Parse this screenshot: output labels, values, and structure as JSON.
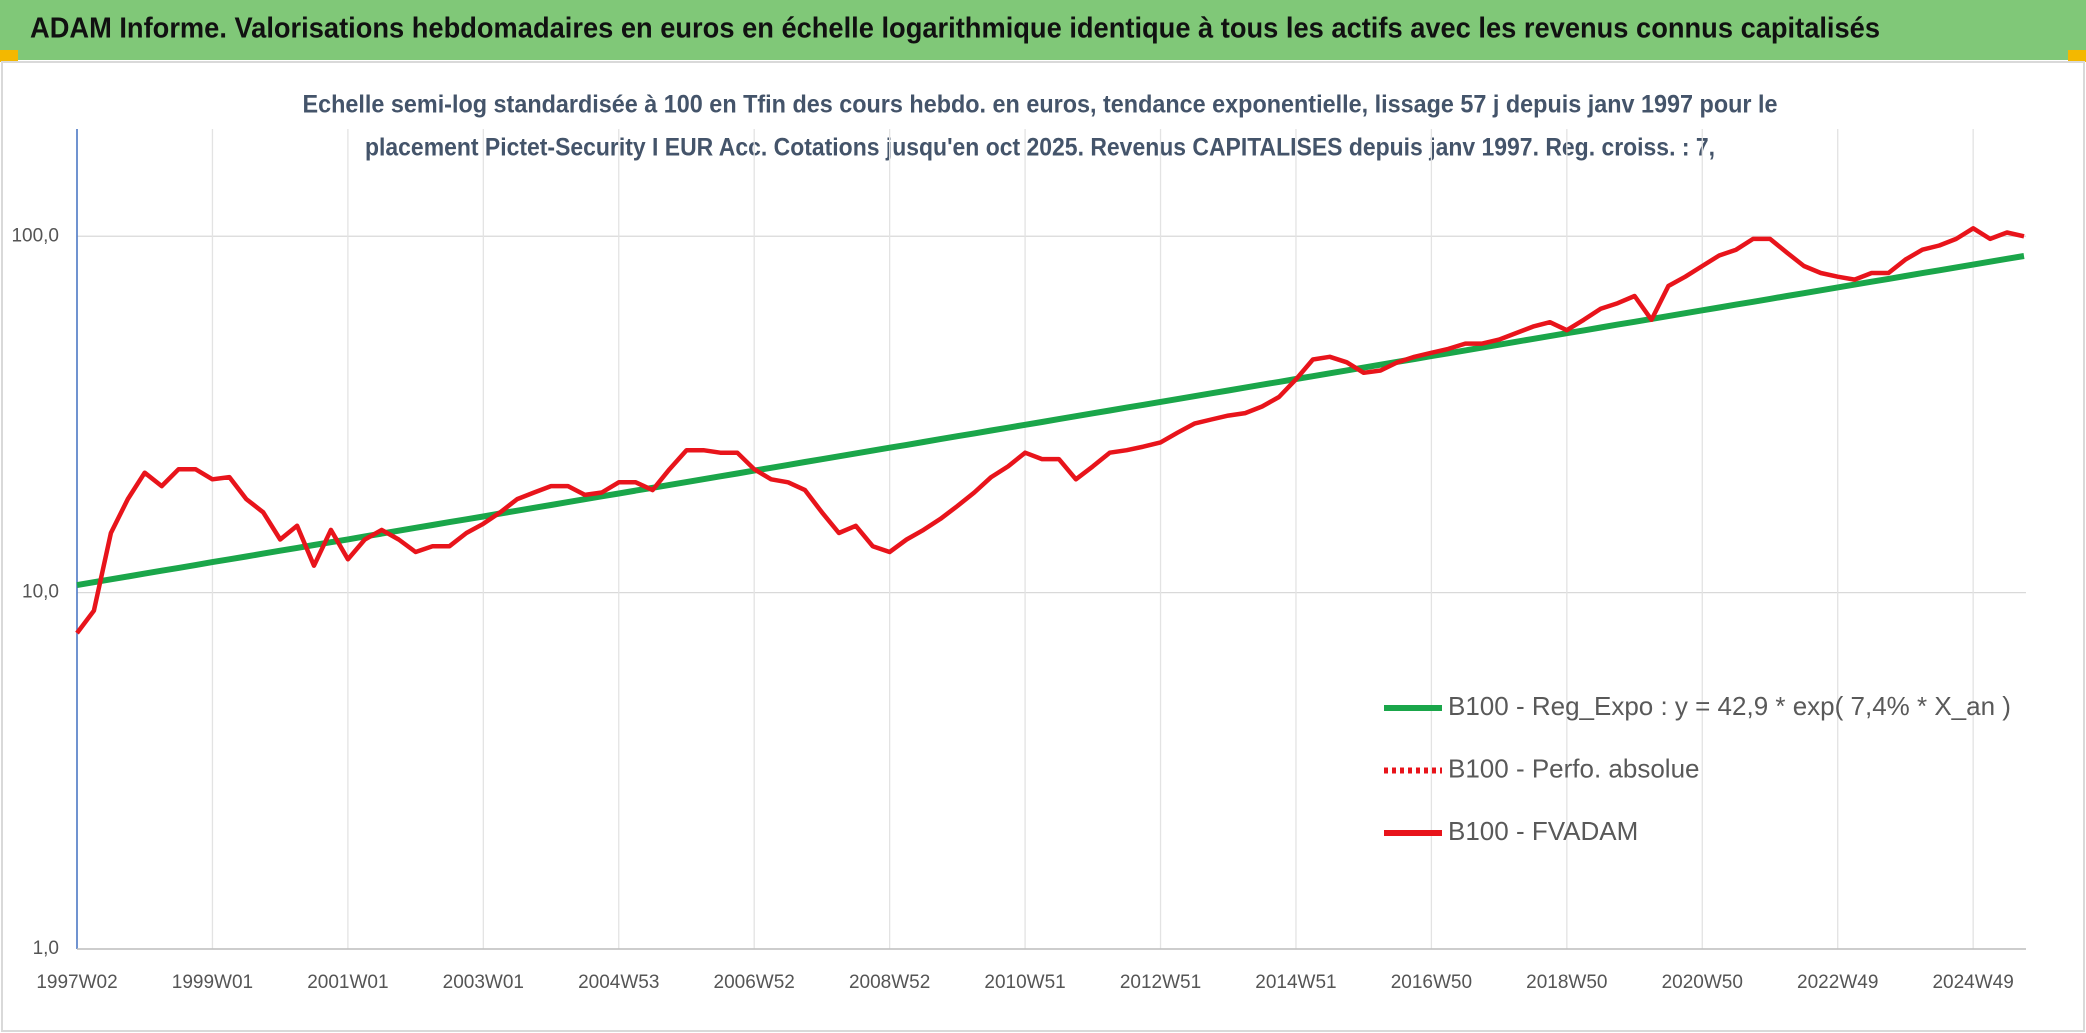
{
  "chart_data": {
    "type": "line",
    "title": "ADAM Informe. Valorisations hebdomadaires en euros en échelle logarithmique identique à tous les actifs avec les revenus connus capitalisés",
    "subtitle": [
      "Echelle semi-log standardisée à 100 en Tfin des cours hebdo. en euros, tendance exponentielle, lissage 57 j depuis janv 1997 pour le",
      "placement Pictet-Security I EUR Acc. Cotations jusqu'en oct 2025. Revenus CAPITALISES depuis janv 1997. Reg. croiss. : 7,"
    ],
    "categories": [
      "1997W02",
      null,
      null,
      null,
      null,
      null,
      null,
      null,
      "1999W01",
      null,
      null,
      null,
      null,
      null,
      null,
      null,
      "2001W01",
      null,
      null,
      null,
      null,
      null,
      null,
      null,
      "2003W01",
      null,
      null,
      null,
      null,
      null,
      null,
      null,
      "2004W53",
      null,
      null,
      null,
      null,
      null,
      null,
      null,
      "2006W52",
      null,
      null,
      null,
      null,
      null,
      null,
      null,
      "2008W52",
      null,
      null,
      null,
      null,
      null,
      null,
      null,
      "2010W51",
      null,
      null,
      null,
      null,
      null,
      null,
      null,
      "2012W51",
      null,
      null,
      null,
      null,
      null,
      null,
      null,
      "2014W51",
      null,
      null,
      null,
      null,
      null,
      null,
      null,
      "2016W50",
      null,
      null,
      null,
      null,
      null,
      null,
      null,
      "2018W50",
      null,
      null,
      null,
      null,
      null,
      null,
      null,
      "2020W50",
      null,
      null,
      null,
      null,
      null,
      null,
      null,
      "2022W49",
      null,
      null,
      null,
      null,
      null,
      null,
      null,
      "2024W49",
      null,
      null,
      null
    ],
    "series": [
      {
        "name": "B100 - Reg_Expo : y = 42,9 * exp( 7,4% *  X_an )",
        "color": "#1aa64a",
        "style": "solid",
        "values": [
          10.5,
          10.7,
          10.9,
          11.1,
          11.31,
          11.52,
          11.73,
          11.95,
          12.18,
          12.4,
          12.63,
          12.87,
          13.11,
          13.35,
          13.6,
          13.85,
          14.11,
          14.38,
          14.64,
          14.92,
          15.2,
          15.48,
          15.77,
          16.06,
          16.36,
          16.67,
          16.98,
          17.3,
          17.62,
          17.95,
          18.29,
          18.63,
          18.97,
          19.33,
          19.69,
          20.06,
          20.43,
          20.81,
          21.2,
          21.6,
          22.0,
          22.41,
          22.83,
          23.26,
          23.69,
          24.13,
          24.58,
          25.04,
          25.51,
          25.98,
          26.47,
          26.96,
          27.47,
          27.98,
          28.5,
          29.03,
          29.57,
          30.12,
          30.69,
          31.26,
          31.85,
          32.44,
          33.05,
          33.66,
          34.29,
          34.93,
          35.58,
          36.25,
          36.92,
          37.61,
          38.32,
          39.03,
          39.76,
          40.5,
          41.26,
          42.03,
          42.81,
          43.61,
          44.43,
          45.26,
          46.1,
          46.96,
          47.84,
          48.73,
          49.64,
          50.57,
          51.51,
          52.47,
          53.45,
          54.45,
          55.46,
          56.5,
          57.55,
          58.62,
          59.72,
          60.83,
          61.97,
          63.12,
          64.3,
          65.5,
          66.73,
          67.97,
          69.24,
          70.53,
          71.85,
          73.19,
          74.55,
          75.94,
          77.36,
          78.8,
          80.28,
          81.77,
          83.3,
          84.86,
          86.44,
          88.05
        ]
      },
      {
        "name": "B100 - Perfo. absolue",
        "color": "#e8141b",
        "style": "dotted",
        "values": [
          null,
          null,
          null,
          null,
          null,
          null,
          null,
          null,
          null,
          null,
          null,
          null,
          null,
          null,
          null,
          null,
          null,
          null,
          null,
          null,
          null,
          null,
          null,
          null,
          null,
          null,
          null,
          null,
          null,
          null,
          null,
          null,
          null,
          null,
          null,
          null,
          null,
          null,
          null,
          null,
          null,
          null,
          null,
          null,
          null,
          null,
          null,
          null,
          null,
          null,
          null,
          null,
          null,
          null,
          null,
          null,
          null,
          null,
          null,
          null,
          null,
          null,
          null,
          null,
          null,
          null,
          null,
          null,
          null,
          null,
          null,
          null,
          null,
          null,
          null,
          null,
          null,
          null,
          null,
          null,
          null,
          null,
          null,
          null,
          null,
          null,
          null,
          null,
          null,
          null,
          null,
          null,
          null,
          null,
          null,
          null,
          null,
          null,
          null,
          null,
          null,
          null,
          null,
          null,
          null,
          null,
          null,
          null,
          null,
          null,
          null,
          null,
          null,
          null,
          null,
          null
        ]
      },
      {
        "name": "B100 - FVADAM",
        "color": "#e8141b",
        "style": "solid",
        "values": [
          7.7,
          8.9,
          14.7,
          18.3,
          21.7,
          19.9,
          22.2,
          22.2,
          20.8,
          21.1,
          18.3,
          16.8,
          14.1,
          15.4,
          11.9,
          15.0,
          12.4,
          14.1,
          15.0,
          14.1,
          13.0,
          13.5,
          13.5,
          14.7,
          15.6,
          16.8,
          18.3,
          19.1,
          19.9,
          19.9,
          18.8,
          19.1,
          20.4,
          20.4,
          19.4,
          22.2,
          25.1,
          25.1,
          24.7,
          24.7,
          22.2,
          20.8,
          20.4,
          19.4,
          16.8,
          14.7,
          15.4,
          13.5,
          13.0,
          14.1,
          15.0,
          16.1,
          17.5,
          19.1,
          21.1,
          22.6,
          24.7,
          23.7,
          23.7,
          20.8,
          22.6,
          24.7,
          25.1,
          25.7,
          26.4,
          28.1,
          29.8,
          30.6,
          31.4,
          31.9,
          33.3,
          35.4,
          39.7,
          45.1,
          45.9,
          44.3,
          41.4,
          42.0,
          44.3,
          45.9,
          47.1,
          48.3,
          50.0,
          50.0,
          51.3,
          53.5,
          55.8,
          57.4,
          54.5,
          58.3,
          62.6,
          64.9,
          68.0,
          58.3,
          72.5,
          77.0,
          82.5,
          88.3,
          91.7,
          98.3,
          98.3,
          90.0,
          82.5,
          78.9,
          77.0,
          75.6,
          78.9,
          78.9,
          86.0,
          91.7,
          94.2,
          98.3,
          105.3,
          98.3,
          102.5,
          100.0
        ]
      }
    ],
    "ylim": [
      1,
      200
    ],
    "yticks": [
      {
        "value": 1,
        "label": "1,0"
      },
      {
        "value": 10,
        "label": "10,0"
      },
      {
        "value": 100,
        "label": "100,0"
      }
    ],
    "log_scale": true,
    "grid": true,
    "legend": "right"
  }
}
